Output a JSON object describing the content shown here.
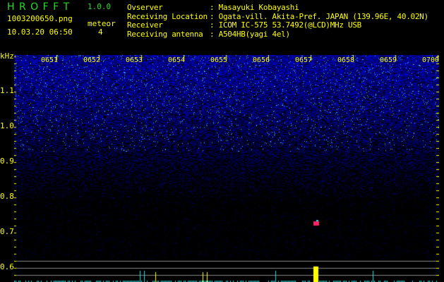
{
  "header": {
    "app_name": "H R O F F T",
    "version": "1.0.0",
    "filename": "1003200650.png",
    "datetime": "10.03.20 06:50",
    "meteor_label": "meteor",
    "meteor_count": "4"
  },
  "info": [
    {
      "label": "Ovserver",
      "value": ": Masayuki Kobayashi"
    },
    {
      "label": "Receiving Location",
      "value": ": Ogata-vill. Akita-Pref. JAPAN (139.96E, 40.02N)"
    },
    {
      "label": "Receiver",
      "value": ": ICOM IC-575 53.7492(@LCD)MHz USB"
    },
    {
      "label": "Receiving antenna",
      "value": ": A504HB(yagi 4el)"
    }
  ],
  "spectrogram": {
    "y_unit": "kHz",
    "y_ticks": [
      "1.1",
      "1.0",
      "0.9",
      "0.8",
      "0.7",
      "0.6"
    ],
    "time_ticks": [
      "0651",
      "0652",
      "0653",
      "0654",
      "0655",
      "0656",
      "0657",
      "0658",
      "0659",
      "0700"
    ],
    "colors": {
      "noise": "#2233ff",
      "axis": "#ffff00",
      "meteor": "#ff2266",
      "signal_bar": "#22dddd",
      "meteor_bar": "#ffff00"
    }
  }
}
